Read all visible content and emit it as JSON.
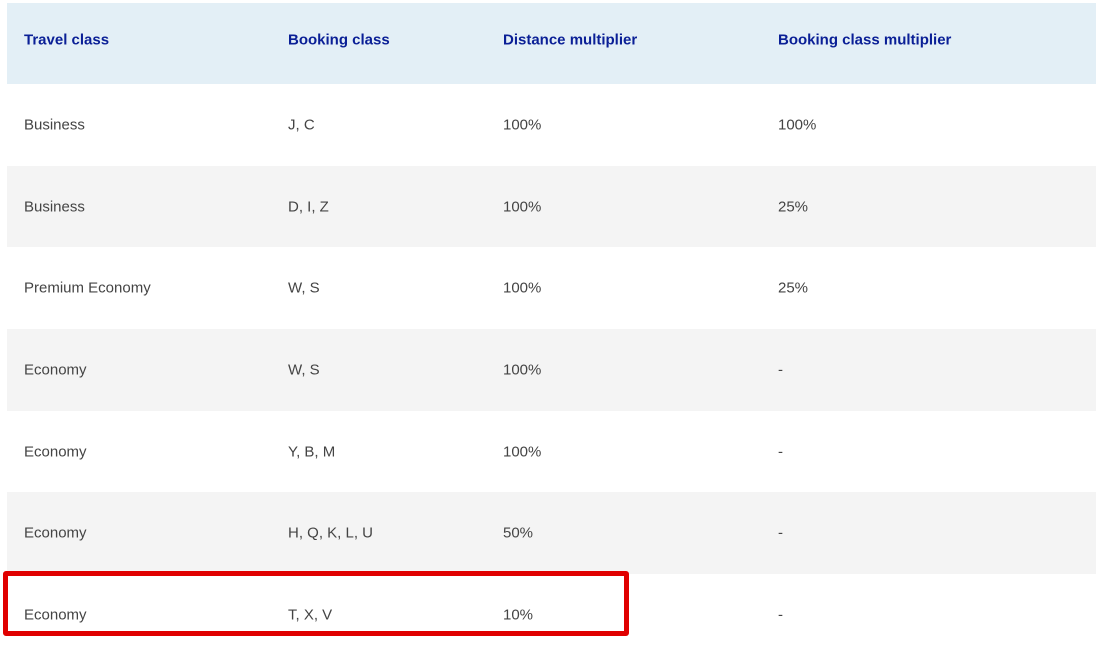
{
  "table": {
    "headers": [
      "Travel class",
      "Booking class",
      "Distance multiplier",
      "Booking class multiplier"
    ],
    "rows": [
      [
        "Business",
        "J, C",
        "100%",
        "100%"
      ],
      [
        "Business",
        "D, I, Z",
        "100%",
        "25%"
      ],
      [
        "Premium Economy",
        "W, S",
        "100%",
        "25%"
      ],
      [
        "Economy",
        "W, S",
        "100%",
        "-"
      ],
      [
        "Economy",
        "Y, B, M",
        "100%",
        "-"
      ],
      [
        "Economy",
        "H, Q, K, L, U",
        "50%",
        "-"
      ],
      [
        "Economy",
        "T, X, V",
        "10%",
        "-"
      ]
    ]
  },
  "colors": {
    "header_bg": "#e3eff6",
    "header_text": "#0a1f96",
    "alt_row_bg": "#f4f4f4",
    "highlight": "#e00000"
  }
}
